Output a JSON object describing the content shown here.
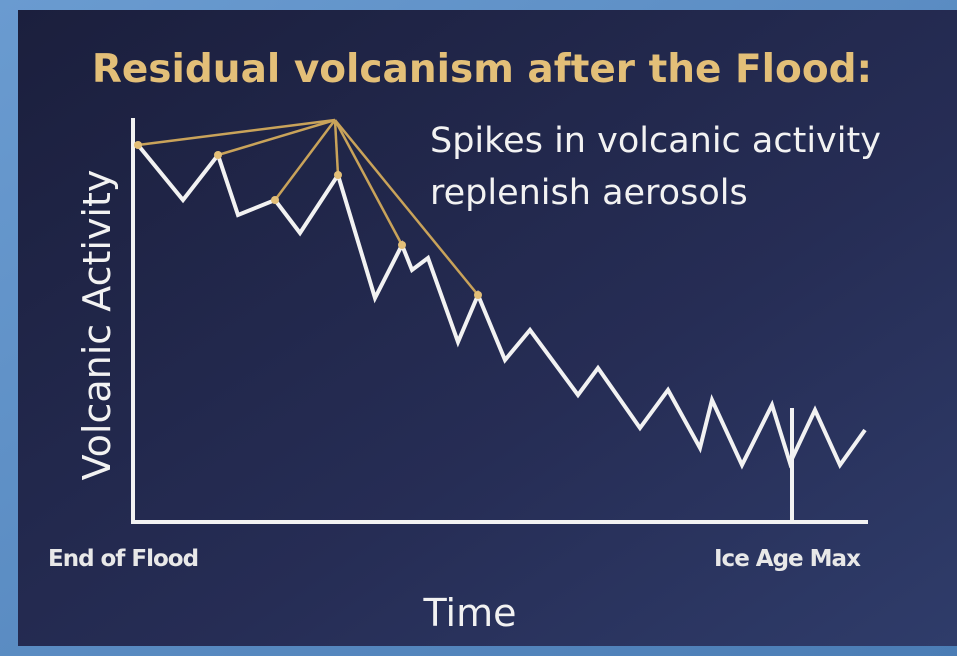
{
  "slide": {
    "title": "Residual volcanism after the Flood:",
    "annotation": [
      "Spikes in volcanic activity",
      "replenish aerosols"
    ],
    "y_axis_label": "Volcanic Activity",
    "x_axis_label": "Time",
    "x_start_label": "End of Flood",
    "x_end_label": "Ice Age Max"
  }
}
